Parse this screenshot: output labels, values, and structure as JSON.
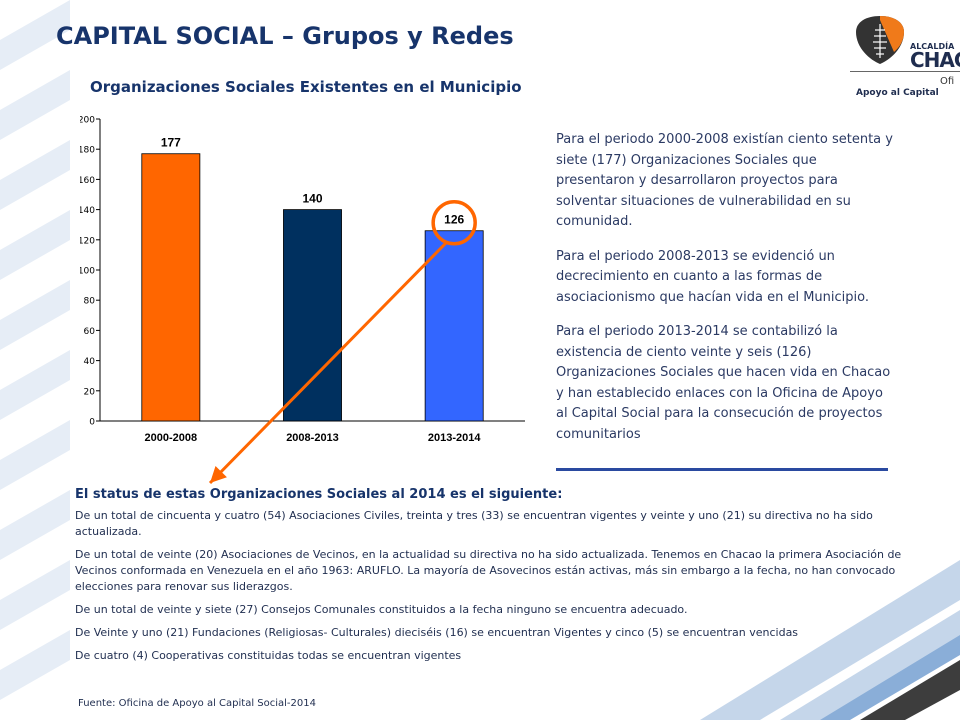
{
  "page": {
    "title": "CAPITAL SOCIAL – Grupos y Redes",
    "logo": {
      "top": "ALCALDÍA",
      "big": "CHACA",
      "sub1": "Ofi",
      "sub2": "Apoyo al Capital",
      "colors": {
        "dark": "#333333",
        "orange": "#f07a1a"
      }
    },
    "colors": {
      "accent": "#17346b",
      "stripes": "#c5d6ea"
    }
  },
  "chart_data": {
    "type": "bar",
    "title": "Organizaciones Sociales Existentes en el Municipio",
    "categories": [
      "2000-2008",
      "2008-2013",
      "2013-2014"
    ],
    "values": [
      177,
      140,
      126
    ],
    "data_labels": [
      "177",
      "140",
      "126"
    ],
    "bar_colors": [
      "#ff6600",
      "#00305f",
      "#3366ff"
    ],
    "ylim": [
      0,
      200
    ],
    "yticks": [
      0,
      20,
      40,
      60,
      80,
      100,
      120,
      140,
      160,
      180,
      200
    ],
    "ytick_labels": [
      "0",
      "20",
      "40",
      "60",
      "80",
      "100",
      "120",
      "140",
      "160",
      "180",
      "200"
    ],
    "grid": false,
    "highlight": {
      "category_index": 2,
      "color": "#ff6600"
    }
  },
  "side_text": {
    "p1": "Para el periodo 2000-2008 existían ciento setenta y siete (177) Organizaciones Sociales que presentaron y desarrollaron proyectos para solventar situaciones de vulnerabilidad en su comunidad.",
    "p2": "Para el periodo 2008-2013 se evidenció un decrecimiento en cuanto a las formas de asociacionismo que hacían vida en el Municipio.",
    "p3": "Para el periodo 2013-2014 se contabilizó la existencia de ciento veinte y seis (126) Organizaciones Sociales que hacen vida en Chacao y han establecido enlaces con la Oficina de Apoyo al Capital Social para la consecución de proyectos comunitarios"
  },
  "status": {
    "heading": "El status de estas Organizaciones Sociales al 2014 es el siguiente:",
    "items": [
      "De un total de cincuenta y cuatro (54) Asociaciones Civiles, treinta y tres (33) se encuentran vigentes y veinte y uno (21) su directiva no ha sido actualizada.",
      "De un total de veinte (20) Asociaciones de Vecinos, en la actualidad su directiva no ha sido actualizada. Tenemos en Chacao la primera Asociación de Vecinos conformada en Venezuela en el año 1963: ARUFLO. La mayoría de Asovecinos están activas, más sin embargo a la fecha, no han convocado elecciones para renovar sus liderazgos.",
      "De un total de veinte y siete (27) Consejos Comunales constituidos a la fecha ninguno se encuentra adecuado.",
      "De Veinte y uno (21) Fundaciones (Religiosas- Culturales) dieciséis (16) se encuentran Vigentes y cinco (5) se encuentran vencidas",
      "De cuatro (4) Cooperativas constituidas todas se encuentran vigentes"
    ]
  },
  "source": "Fuente: Oficina de Apoyo al Capital Social-2014"
}
